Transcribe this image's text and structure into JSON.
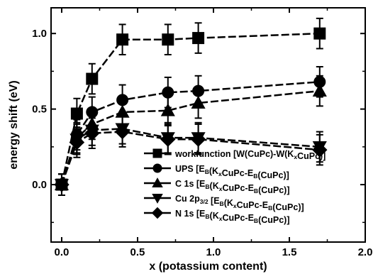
{
  "chart_data": {
    "type": "line",
    "xlabel": "x (potassium content)",
    "ylabel": "energy shift (eV)",
    "xlim": [
      -0.07,
      2.0
    ],
    "ylim": [
      -0.38,
      1.17
    ],
    "x_ticks": [
      "0.0",
      "0.5",
      "1.0",
      "1.5",
      "2.0"
    ],
    "y_ticks": [
      "0.0",
      "0.5",
      "1.0"
    ],
    "grid": false,
    "legend_placement": "lower-right",
    "series": [
      {
        "name": "workfunction [W(CuPc)-W(K_xCuPc)]",
        "legend_parts": [
          {
            "t": "workfunction [W(CuPc)-W(K"
          },
          {
            "t": "x",
            "sub": true
          },
          {
            "t": "CuPc)]"
          }
        ],
        "marker": "square",
        "x": [
          0.0,
          0.1,
          0.2,
          0.4,
          0.7,
          0.9,
          1.7
        ],
        "y": [
          0.0,
          0.47,
          0.7,
          0.96,
          0.96,
          0.97,
          1.0
        ],
        "err": [
          0.07,
          0.1,
          0.1,
          0.1,
          0.1,
          0.1,
          0.1
        ]
      },
      {
        "name": "UPS [E_B(K_xCuPc-E_B(CuPc)]",
        "legend_parts": [
          {
            "t": "UPS [E"
          },
          {
            "t": "B",
            "sub": true
          },
          {
            "t": "(K"
          },
          {
            "t": "x",
            "sub": true
          },
          {
            "t": "CuPc-E"
          },
          {
            "t": "B",
            "sub": true
          },
          {
            "t": "(CuPc)]"
          }
        ],
        "marker": "circle",
        "x": [
          0.0,
          0.1,
          0.2,
          0.4,
          0.7,
          0.9,
          1.7
        ],
        "y": [
          0.0,
          0.33,
          0.48,
          0.56,
          0.61,
          0.62,
          0.68
        ],
        "err": [
          0.07,
          0.1,
          0.1,
          0.1,
          0.1,
          0.1,
          0.1
        ]
      },
      {
        "name": "C 1s [E_B(K_xCuPc-E_B(CuPc)]",
        "legend_parts": [
          {
            "t": "C 1s [E"
          },
          {
            "t": "B",
            "sub": true
          },
          {
            "t": "(K"
          },
          {
            "t": "x",
            "sub": true
          },
          {
            "t": "CuPc-E"
          },
          {
            "t": "B",
            "sub": true
          },
          {
            "t": "(CuPc)]"
          }
        ],
        "marker": "triangle-up",
        "x": [
          0.0,
          0.1,
          0.2,
          0.4,
          0.7,
          0.9,
          1.7
        ],
        "y": [
          0.0,
          0.31,
          0.4,
          0.48,
          0.49,
          0.54,
          0.62
        ],
        "err": [
          0.07,
          0.1,
          0.1,
          0.1,
          0.1,
          0.1,
          0.1
        ]
      },
      {
        "name": "Cu 2p_3/2 [E_B(K_xCuPc-E_B(CuPc)]",
        "legend_parts": [
          {
            "t": "Cu 2p"
          },
          {
            "t": "3/2",
            "sub": true
          },
          {
            "t": " [E"
          },
          {
            "t": "B",
            "sub": true
          },
          {
            "t": "(K"
          },
          {
            "t": "x",
            "sub": true
          },
          {
            "t": "CuPc-E"
          },
          {
            "t": "B",
            "sub": true
          },
          {
            "t": "(CuPc)]"
          }
        ],
        "marker": "triangle-down",
        "x": [
          0.0,
          0.1,
          0.2,
          0.4,
          0.7,
          0.9,
          1.7
        ],
        "y": [
          0.0,
          0.3,
          0.36,
          0.37,
          0.31,
          0.31,
          0.25
        ],
        "err": [
          0.07,
          0.1,
          0.1,
          0.1,
          0.1,
          0.1,
          0.1
        ]
      },
      {
        "name": "N 1s [E_B(K_xCuPc-E_B(CuPc)]",
        "legend_parts": [
          {
            "t": "N 1s [E"
          },
          {
            "t": "B",
            "sub": true
          },
          {
            "t": "(K"
          },
          {
            "t": "x",
            "sub": true
          },
          {
            "t": "CuPc-E"
          },
          {
            "t": "B",
            "sub": true
          },
          {
            "t": "(CuPc)]"
          }
        ],
        "marker": "diamond",
        "x": [
          0.0,
          0.1,
          0.2,
          0.4,
          0.7,
          0.9,
          1.7
        ],
        "y": [
          0.0,
          0.28,
          0.34,
          0.35,
          0.3,
          0.3,
          0.23
        ],
        "err": [
          0.07,
          0.1,
          0.1,
          0.1,
          0.1,
          0.1,
          0.1
        ]
      }
    ]
  },
  "colors": {
    "line": "#000000",
    "background": "#ffffff"
  }
}
